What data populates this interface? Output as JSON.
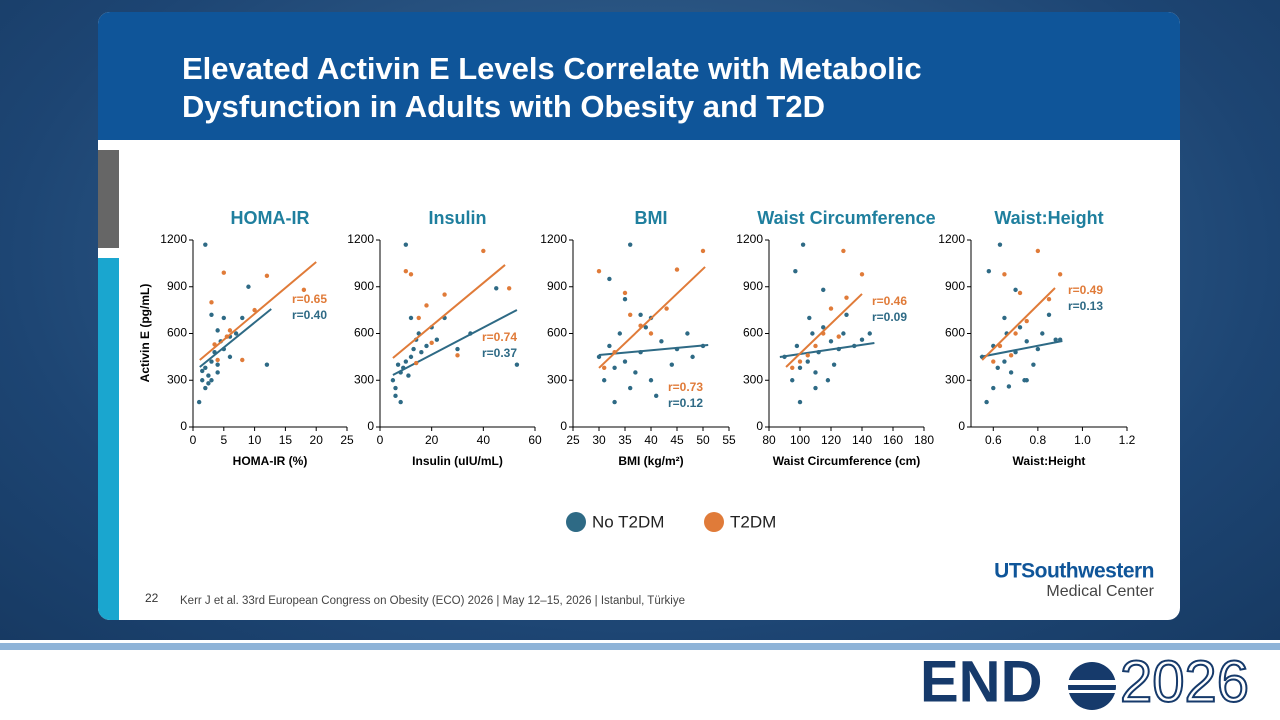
{
  "header": {
    "title": "Elevated Activin E Levels Correlate with Metabolic Dysfunction in Adults with Obesity and T2D"
  },
  "footer": {
    "slide_number": "22",
    "citation": "Kerr J et al. 33rd European Congress on Obesity (ECO) 2026 | May 12–15, 2026 | Istanbul, Türkiye",
    "logo_name": "UTSouthwestern",
    "logo_sub": "Medical Center",
    "brand_left": "END",
    "brand_right": "2026"
  },
  "chart_data": {
    "type": "scatter",
    "ylabel": "Activin E (pg/mL)",
    "ylim": [
      0,
      1200
    ],
    "yticks": [
      0,
      300,
      600,
      900,
      1200
    ],
    "series": [
      {
        "name": "No T2DM",
        "color": "#2e6a85"
      },
      {
        "name": "T2DM",
        "color": "#e07b39"
      }
    ],
    "panels": [
      {
        "title": "HOMA-IR",
        "xlabel": "HOMA-IR (%)",
        "xlim": [
          0,
          25
        ],
        "xticks": [
          0,
          5,
          10,
          15,
          20,
          25
        ],
        "series": [
          {
            "r_label": "r=0.40",
            "x": [
              1,
              1.5,
              2,
              2,
              2.5,
              3,
              3,
              3.5,
              4,
              4,
              4.5,
              5,
              5,
              6,
              7,
              8,
              2,
              1.5,
              3,
              12,
              2.5,
              4,
              6,
              9
            ],
            "values": [
              160,
              300,
              250,
              380,
              330,
              420,
              300,
              480,
              400,
              620,
              550,
              500,
              700,
              450,
              600,
              700,
              1170,
              360,
              720,
              400,
              280,
              350,
              580,
              900
            ],
            "fit": {
              "x": [
                1.1,
                12.7
              ],
              "values": [
                385,
                757
              ]
            }
          },
          {
            "r_label": "r=0.65",
            "x": [
              3,
              4,
              5,
              5.5,
              6,
              8,
              10,
              12,
              18,
              3.5
            ],
            "values": [
              800,
              430,
              990,
              580,
              620,
              430,
              750,
              970,
              880,
              530
            ],
            "fit": {
              "x": [
                1.1,
                20
              ],
              "values": [
                430,
                1059
              ]
            }
          }
        ]
      },
      {
        "title": "Insulin",
        "xlabel": "Insulin (uIU/mL)",
        "xlim": [
          0,
          60
        ],
        "xticks": [
          0,
          20,
          40,
          60
        ],
        "series": [
          {
            "r_label": "r=0.37",
            "x": [
              5,
              6,
              7,
              8,
              9,
              10,
              11,
              12,
              13,
              14,
              15,
              16,
              18,
              20,
              22,
              25,
              30,
              35,
              8,
              10,
              12,
              53,
              45,
              6
            ],
            "values": [
              300,
              250,
              400,
              350,
              380,
              420,
              330,
              450,
              500,
              560,
              600,
              480,
              520,
              640,
              560,
              700,
              500,
              600,
              160,
              1170,
              700,
              400,
              890,
              200
            ],
            "fit": {
              "x": [
                5,
                53
              ],
              "values": [
                334,
                751
              ]
            }
          },
          {
            "r_label": "r=0.74",
            "x": [
              10,
              12,
              15,
              18,
              20,
              25,
              30,
              40,
              50,
              14
            ],
            "values": [
              1000,
              980,
              700,
              780,
              540,
              850,
              460,
              1130,
              890,
              410
            ],
            "fit": {
              "x": [
                5,
                48.4
              ],
              "values": [
                443,
                1040
              ]
            }
          }
        ]
      },
      {
        "title": "BMI",
        "xlabel": "BMI (kg/m²)",
        "xlim": [
          25,
          55
        ],
        "xticks": [
          25,
          30,
          35,
          40,
          45,
          50,
          55
        ],
        "series": [
          {
            "r_label": "r=0.12",
            "x": [
              30,
              31,
              32,
              33,
              34,
              35,
              36,
              37,
              38,
              39,
              40,
              42,
              44,
              45,
              47,
              50,
              33,
              36,
              40,
              35,
              32,
              41,
              48,
              38
            ],
            "values": [
              450,
              300,
              520,
              380,
              600,
              420,
              1170,
              350,
              480,
              640,
              300,
              550,
              400,
              500,
              600,
              520,
              160,
              250,
              700,
              820,
              950,
              200,
              450,
              720
            ],
            "fit": {
              "x": [
                30,
                51
              ],
              "values": [
                462,
                526
              ]
            }
          },
          {
            "r_label": "r=0.73",
            "x": [
              30,
              31,
              33,
              36,
              38,
              40,
              43,
              45,
              50,
              35
            ],
            "values": [
              1000,
              380,
              480,
              720,
              650,
              600,
              760,
              1010,
              1130,
              860
            ],
            "fit": {
              "x": [
                30,
                50.4
              ],
              "values": [
                379,
                1027
              ]
            }
          }
        ]
      },
      {
        "title": "Waist Circumference",
        "xlabel": "Waist Circumference (cm)",
        "xlim": [
          80,
          180
        ],
        "xticks": [
          80,
          100,
          120,
          140,
          160,
          180
        ],
        "series": [
          {
            "r_label": "r=0.09",
            "x": [
              90,
              95,
              98,
              100,
              102,
              105,
              108,
              110,
              112,
              115,
              118,
              120,
              122,
              125,
              128,
              130,
              135,
              140,
              100,
              110,
              97,
              145,
              106,
              115
            ],
            "values": [
              450,
              300,
              520,
              380,
              1170,
              420,
              600,
              350,
              480,
              640,
              300,
              550,
              400,
              500,
              600,
              720,
              520,
              560,
              160,
              250,
              1000,
              600,
              700,
              880
            ],
            "fit": {
              "x": [
                87,
                148
              ],
              "values": [
                449,
                539
              ]
            }
          },
          {
            "r_label": "r=0.46",
            "x": [
              95,
              100,
              110,
              115,
              120,
              128,
              130,
              140,
              105,
              125
            ],
            "values": [
              380,
              420,
              520,
              600,
              760,
              1130,
              830,
              980,
              460,
              580
            ],
            "fit": {
              "x": [
                91,
                140
              ],
              "values": [
                385,
                854
              ]
            }
          }
        ]
      },
      {
        "title": "Waist:Height",
        "xlabel": "Waist:Height",
        "xlim": [
          0.5,
          1.2
        ],
        "xticks": [
          0.6,
          0.8,
          {
            "value": 1,
            "label": "1.0"
          },
          1.2
        ],
        "series": [
          {
            "r_label": "r=0.13",
            "x": [
              0.55,
              0.57,
              0.6,
              0.62,
              0.63,
              0.65,
              0.66,
              0.68,
              0.7,
              0.72,
              0.74,
              0.75,
              0.78,
              0.8,
              0.82,
              0.85,
              0.88,
              0.6,
              0.65,
              0.7,
              0.58,
              0.75,
              0.9,
              0.67
            ],
            "values": [
              450,
              160,
              520,
              380,
              1170,
              420,
              600,
              350,
              480,
              640,
              300,
              550,
              400,
              500,
              600,
              720,
              560,
              250,
              700,
              880,
              1000,
              300,
              560,
              260
            ],
            "fit": {
              "x": [
                0.54,
                0.91
              ],
              "values": [
                449,
                552
              ]
            }
          },
          {
            "r_label": "r=0.49",
            "x": [
              0.6,
              0.63,
              0.65,
              0.7,
              0.72,
              0.8,
              0.85,
              0.9,
              0.68,
              0.75
            ],
            "values": [
              420,
              520,
              980,
              600,
              860,
              1130,
              820,
              980,
              460,
              680
            ],
            "fit": {
              "x": [
                0.55,
                0.877
              ],
              "values": [
                430,
                892
              ]
            }
          }
        ]
      }
    ]
  }
}
